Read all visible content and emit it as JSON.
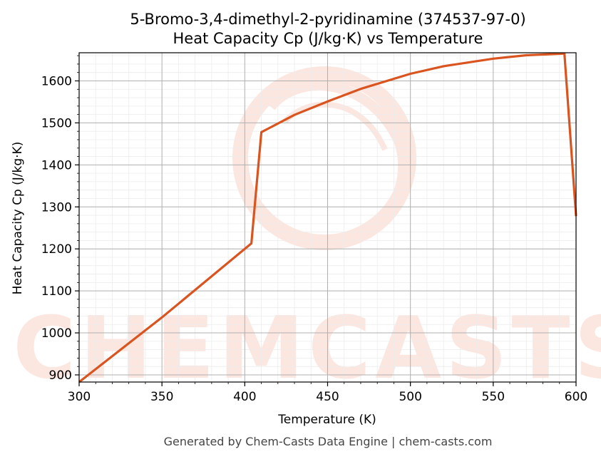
{
  "chart_data": {
    "type": "line",
    "title_line1": "5-Bromo-3,4-dimethyl-2-pyridinamine (374537-97-0)",
    "title_line2": "Heat Capacity Cp (J/kg·K) vs Temperature",
    "xlabel": "Temperature (K)",
    "ylabel": "Heat Capacity Cp (J/kg·K)",
    "xlim": [
      300,
      600
    ],
    "ylim": [
      883,
      1667
    ],
    "x_ticks": [
      300,
      350,
      400,
      450,
      500,
      550,
      600
    ],
    "y_ticks": [
      900,
      1000,
      1100,
      1200,
      1300,
      1400,
      1500,
      1600
    ],
    "grid": true,
    "line_color": "#d9541e",
    "series": [
      {
        "x": [
          300,
          350,
          404,
          410,
          430,
          450,
          470,
          500,
          520,
          550,
          570,
          593,
          600
        ],
        "y": [
          883,
          1037,
          1213,
          1478,
          1519,
          1551,
          1581,
          1617,
          1635,
          1653,
          1661,
          1665,
          1278
        ]
      }
    ]
  },
  "watermark": {
    "text": "CHEMCASTS",
    "color": "#fbd3c7"
  },
  "footer": "Generated by Chem-Casts Data Engine | chem-casts.com"
}
